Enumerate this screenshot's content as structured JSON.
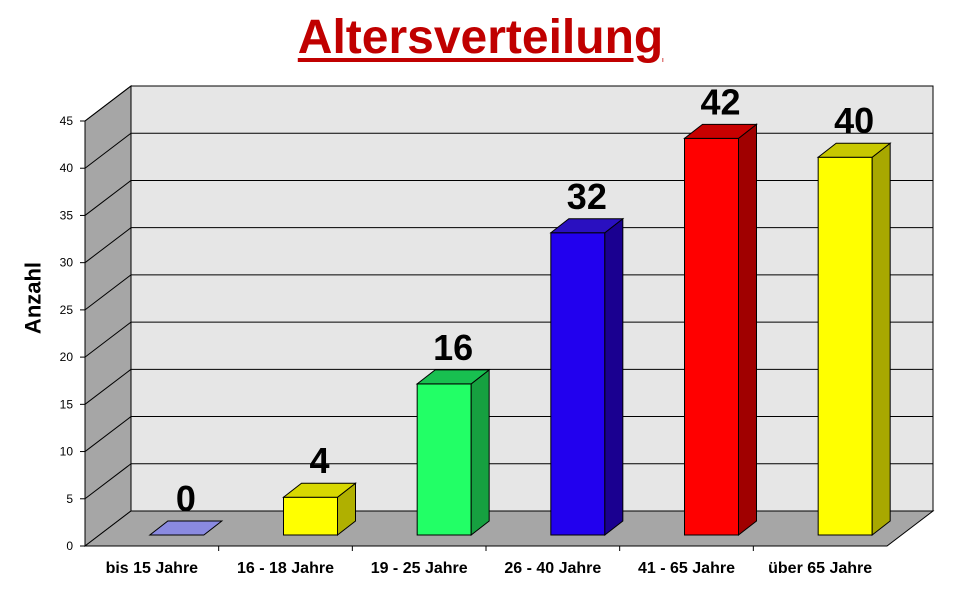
{
  "chart_data": {
    "type": "bar",
    "title": "Altersverteilung",
    "xlabel": "",
    "ylabel": "Anzahl",
    "ylim": [
      0,
      45
    ],
    "yticks": [
      0,
      5,
      10,
      15,
      20,
      25,
      30,
      35,
      40,
      45
    ],
    "grid": true,
    "legend": "none",
    "categories": [
      "bis 15 Jahre",
      "16 - 18 Jahre",
      "19 - 25 Jahre",
      "26 - 40 Jahre",
      "41 - 65 Jahre",
      "über 65 Jahre"
    ],
    "values": [
      0,
      4,
      16,
      32,
      42,
      40
    ],
    "data_labels": [
      "0",
      "4",
      "16",
      "32",
      "42",
      "40"
    ],
    "colors": [
      "#7070c8",
      "#ffff00",
      "#22ff66",
      "#2200ee",
      "#ff0000",
      "#ffff00"
    ],
    "side_colors": [
      "#4a4a90",
      "#b0b000",
      "#16a040",
      "#1a0090",
      "#a00000",
      "#a8a800"
    ],
    "top_colors": [
      "#8a8ae0",
      "#d8d800",
      "#18c050",
      "#2a10c0",
      "#c80000",
      "#c8c800"
    ]
  }
}
